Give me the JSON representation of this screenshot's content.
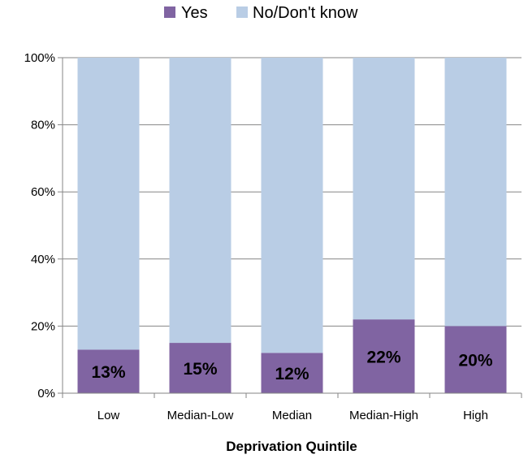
{
  "chart_data": {
    "type": "bar",
    "stacked": true,
    "categories": [
      "Low",
      "Median-Low",
      "Median",
      "Median-High",
      "High"
    ],
    "series": [
      {
        "name": "Yes",
        "values": [
          13,
          15,
          12,
          22,
          20
        ],
        "color": "#8064a2"
      },
      {
        "name": "No/Don't know",
        "values": [
          87,
          85,
          88,
          78,
          80
        ],
        "color": "#b9cde5"
      }
    ],
    "data_labels": [
      "13%",
      "15%",
      "12%",
      "22%",
      "20%"
    ],
    "xlabel": "Deprivation Quintile",
    "ylabel": "",
    "ylim": [
      0,
      100
    ],
    "yticks": [
      "0%",
      "20%",
      "40%",
      "60%",
      "80%",
      "100%"
    ],
    "grid": true,
    "legend": "top"
  }
}
